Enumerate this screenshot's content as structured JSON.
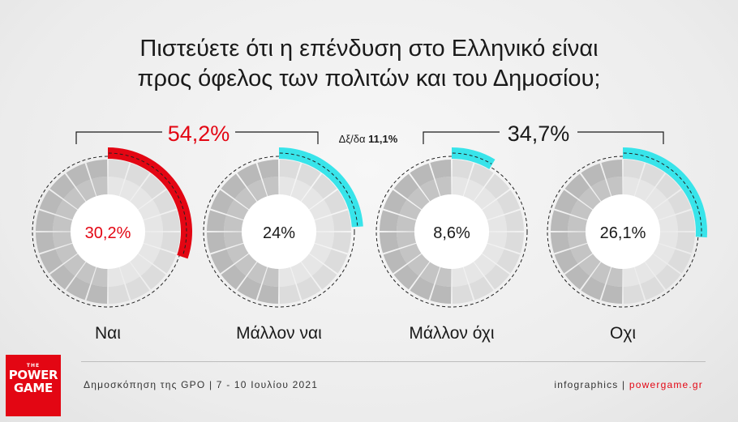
{
  "title": {
    "line1": "Πιστεύετε ότι η επένδυση στο Ελληνικό είναι",
    "line2": "προς όφελος των πολιτών και του Δημοσίου;"
  },
  "groups": {
    "positive": "54,2%",
    "negative": "34,7%",
    "dk_label": "Δξ/δα",
    "dk_value": "11,1%"
  },
  "colors": {
    "positive": "#e30613",
    "negative": "#38e4ea",
    "value_positive": "#e30613"
  },
  "chart_data": {
    "type": "pie",
    "title": "Πιστεύετε ότι η επένδυση στο Ελληνικό είναι προς όφελος των πολιτών και του Δημοσίου;",
    "categories": [
      "Ναι",
      "Μάλλον ναι",
      "Μάλλον όχι",
      "Οχι"
    ],
    "values": [
      30.2,
      24,
      8.6,
      26.1
    ],
    "labels": [
      "30,2%",
      "24%",
      "8,6%",
      "26,1%"
    ],
    "groups": [
      {
        "name": "54,2%",
        "members": [
          "Ναι",
          "Μάλλον ναι"
        ],
        "value": 54.2
      },
      {
        "name": "Δξ/δα",
        "value": 11.1
      },
      {
        "name": "34,7%",
        "members": [
          "Μάλλον όχι",
          "Οχι"
        ],
        "value": 34.7
      }
    ]
  },
  "logo": {
    "the": "THE",
    "line1": "POWER",
    "line2": "GAME"
  },
  "footer": {
    "source": "Δημοσκόπηση της GPO | 7 - 10 Ιουλίου 2021",
    "credit": "infographics | ",
    "site": "powergame.gr"
  }
}
